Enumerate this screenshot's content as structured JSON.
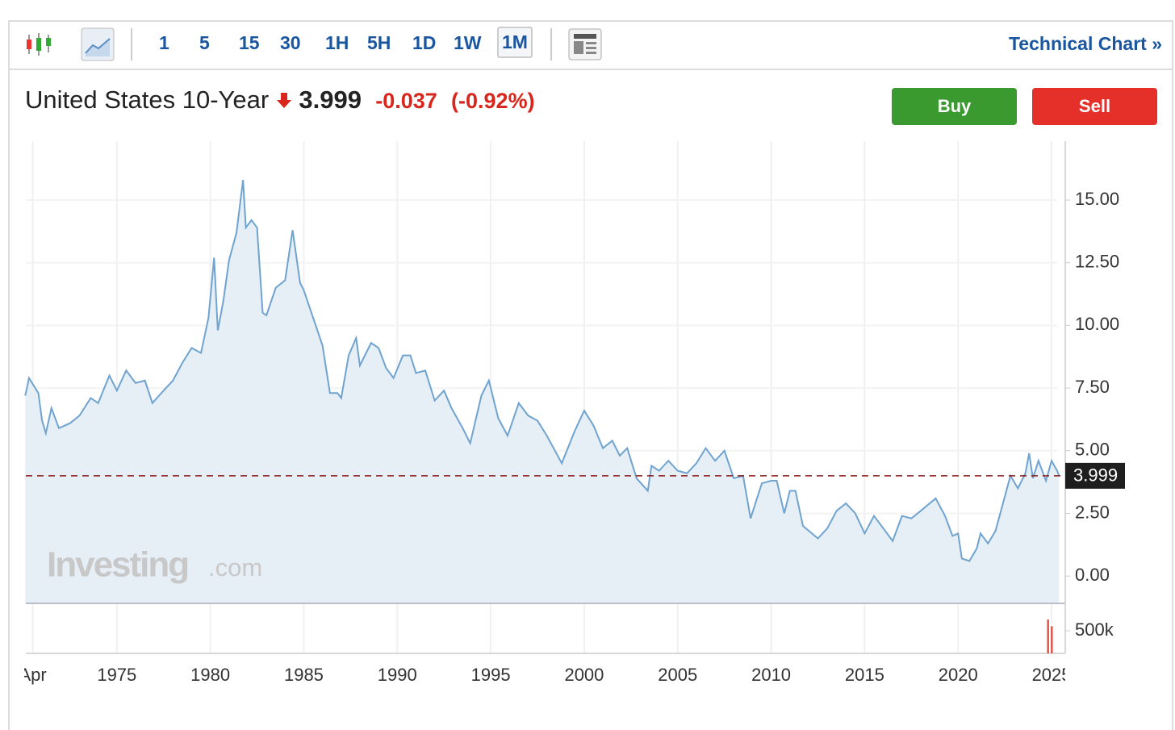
{
  "toolbar": {
    "intervals": [
      "1",
      "5",
      "15",
      "30",
      "1H",
      "5H",
      "1D",
      "1W",
      "1M"
    ],
    "selected": "1M",
    "link": "Technical Chart",
    "link_icon": "»"
  },
  "header": {
    "name": "United States 10-Year",
    "price": "3.999",
    "change": "-0.037",
    "change_pct": "(-0.92%)",
    "buy": "Buy",
    "sell": "Sell"
  },
  "watermark": {
    "brand": "Investing",
    "suffix": ".com"
  },
  "chart_data": {
    "type": "area",
    "series": [
      {
        "color": "#6fa3d0",
        "x": [
          1970.1,
          1970.3,
          1970.8,
          1971.0,
          1971.2,
          1971.5,
          1971.9,
          1972.5,
          1973.0,
          1973.6,
          1974.0,
          1974.6,
          1975.0,
          1975.5,
          1976.0,
          1976.5,
          1976.9,
          1977.5,
          1978.0,
          1978.5,
          1979.0,
          1979.5,
          1979.9,
          1980.2,
          1980.4,
          1980.7,
          1981.0,
          1981.4,
          1981.75,
          1981.9,
          1982.2,
          1982.5,
          1982.8,
          1983.0,
          1983.5,
          1984.0,
          1984.4,
          1984.8,
          1985.0,
          1985.5,
          1986.0,
          1986.4,
          1986.8,
          1987.0,
          1987.4,
          1987.8,
          1988.0,
          1988.6,
          1989.0,
          1989.4,
          1989.8,
          1990.3,
          1990.7,
          1991.0,
          1991.5,
          1992.0,
          1992.5,
          1992.9,
          1993.5,
          1993.9,
          1994.5,
          1994.9,
          1995.4,
          1995.9,
          1996.5,
          1997.0,
          1997.5,
          1998.0,
          1998.8,
          1999.5,
          2000.0,
          2000.5,
          2001.0,
          2001.5,
          2001.9,
          2002.3,
          2002.8,
          2003.4,
          2003.6,
          2004.0,
          2004.5,
          2005.0,
          2005.5,
          2006.0,
          2006.5,
          2007.0,
          2007.5,
          2008.0,
          2008.5,
          2008.9,
          2009.5,
          2010.0,
          2010.3,
          2010.7,
          2011.0,
          2011.3,
          2011.7,
          2012.5,
          2013.0,
          2013.5,
          2014.0,
          2014.5,
          2015.0,
          2015.5,
          2016.0,
          2016.5,
          2017.0,
          2017.5,
          2018.0,
          2018.8,
          2019.3,
          2019.7,
          2020.0,
          2020.2,
          2020.6,
          2021.0,
          2021.2,
          2021.6,
          2022.0,
          2022.4,
          2022.8,
          2023.2,
          2023.6,
          2023.8,
          2024.0,
          2024.3,
          2024.7,
          2025.0,
          2025.3,
          2025.4
        ],
        "values": [
          7.2,
          7.9,
          7.3,
          6.2,
          5.7,
          6.7,
          5.9,
          6.1,
          6.4,
          7.1,
          6.9,
          8.0,
          7.4,
          8.2,
          7.7,
          7.8,
          6.9,
          7.4,
          7.8,
          8.5,
          9.1,
          8.9,
          10.3,
          12.7,
          9.8,
          11.0,
          12.6,
          13.7,
          15.8,
          13.9,
          14.2,
          13.9,
          10.5,
          10.4,
          11.5,
          11.8,
          13.8,
          11.7,
          11.4,
          10.3,
          9.2,
          7.3,
          7.3,
          7.1,
          8.8,
          9.5,
          8.4,
          9.3,
          9.1,
          8.3,
          7.9,
          8.8,
          8.8,
          8.1,
          8.2,
          7.0,
          7.4,
          6.7,
          5.9,
          5.3,
          7.2,
          7.8,
          6.3,
          5.6,
          6.9,
          6.4,
          6.2,
          5.6,
          4.5,
          5.8,
          6.6,
          6.0,
          5.1,
          5.4,
          4.8,
          5.1,
          3.9,
          3.4,
          4.4,
          4.2,
          4.6,
          4.2,
          4.1,
          4.5,
          5.1,
          4.6,
          5.0,
          3.9,
          4.0,
          2.3,
          3.7,
          3.8,
          3.8,
          2.5,
          3.4,
          3.4,
          2.0,
          1.5,
          1.9,
          2.6,
          2.9,
          2.5,
          1.7,
          2.4,
          1.9,
          1.4,
          2.4,
          2.3,
          2.6,
          3.1,
          2.4,
          1.6,
          1.7,
          0.7,
          0.6,
          1.1,
          1.7,
          1.3,
          1.8,
          2.9,
          4.0,
          3.5,
          4.1,
          4.9,
          3.9,
          4.6,
          3.8,
          4.6,
          4.2,
          4.0
        ]
      }
    ],
    "last_value": 3.999,
    "last_color": "#8b1a1a",
    "xlim": [
      1970.13,
      2025.3
    ],
    "xticks": [
      {
        "value": 1970.5,
        "label": "Apr"
      },
      1975,
      1980,
      1985,
      1990,
      1995,
      2000,
      2005,
      2010,
      2015,
      2020,
      {
        "value": 2025,
        "label": "2025"
      }
    ],
    "ylim": [
      -1.09,
      17.35
    ],
    "yticks": [
      {
        "value": 0,
        "label": "0.00"
      },
      {
        "value": 2.5,
        "label": "2.50"
      },
      {
        "value": 5,
        "label": "5.00"
      },
      {
        "value": 7.5,
        "label": "7.50"
      },
      {
        "value": 10,
        "label": "10.00"
      },
      {
        "value": 12.5,
        "label": "12.50"
      },
      {
        "value": 15,
        "label": "15.00"
      }
    ],
    "grid": true,
    "volume": {
      "x": [
        2024.8,
        2025.0
      ],
      "values": [
        750000,
        600000
      ],
      "color": "#e0554a",
      "ylim": [
        0,
        1107000
      ],
      "yticks": [
        {
          "value": 500000,
          "label": "500k"
        }
      ]
    }
  }
}
